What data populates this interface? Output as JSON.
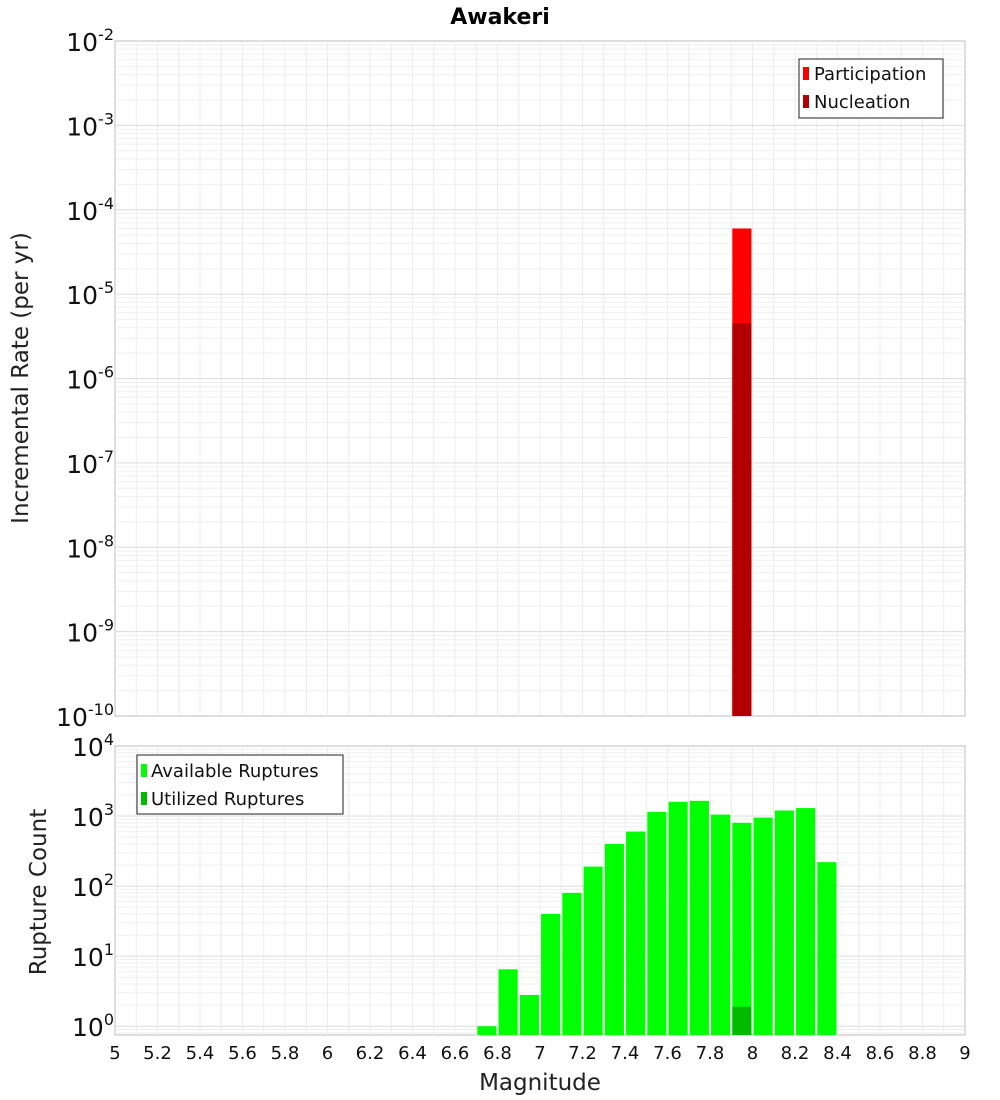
{
  "chart_data": [
    {
      "type": "bar",
      "title": "Awakeri",
      "xlabel": "Magnitude",
      "ylabel": "Incremental Rate (per yr)",
      "xlim": [
        5,
        9
      ],
      "ylim": [
        1e-10,
        0.01
      ],
      "yscale": "log",
      "grid": true,
      "legend_position": "top-right",
      "y_ticks": [
        {
          "base": "10",
          "exp": "-10"
        },
        {
          "base": "10",
          "exp": "-9"
        },
        {
          "base": "10",
          "exp": "-8"
        },
        {
          "base": "10",
          "exp": "-7"
        },
        {
          "base": "10",
          "exp": "-6"
        },
        {
          "base": "10",
          "exp": "-5"
        },
        {
          "base": "10",
          "exp": "-4"
        },
        {
          "base": "10",
          "exp": "-3"
        },
        {
          "base": "10",
          "exp": "-2"
        }
      ],
      "bar_width": 0.09,
      "series": [
        {
          "name": "Participation",
          "color": "#ff0000",
          "x": [
            7.95
          ],
          "values": [
            6e-05
          ]
        },
        {
          "name": "Nucleation",
          "color": "#b20000",
          "x": [
            7.95
          ],
          "values": [
            4.5e-06
          ]
        }
      ]
    },
    {
      "type": "bar",
      "title": "",
      "xlabel": "Magnitude",
      "ylabel": "Rupture Count",
      "xlim": [
        5,
        9
      ],
      "ylim": [
        0.75,
        10000
      ],
      "yscale": "log",
      "grid": true,
      "legend_position": "top-left",
      "y_ticks": [
        {
          "base": "10",
          "exp": "0"
        },
        {
          "base": "10",
          "exp": "1"
        },
        {
          "base": "10",
          "exp": "2"
        },
        {
          "base": "10",
          "exp": "3"
        },
        {
          "base": "10",
          "exp": "4"
        }
      ],
      "x_ticks": [
        "5",
        "5.2",
        "5.4",
        "5.6",
        "5.8",
        "6",
        "6.2",
        "6.4",
        "6.6",
        "6.8",
        "7",
        "7.2",
        "7.4",
        "7.6",
        "7.8",
        "8",
        "8.2",
        "8.4",
        "8.6",
        "8.8",
        "9"
      ],
      "bar_width": 0.09,
      "series": [
        {
          "name": "Available Ruptures",
          "color": "#00ff00",
          "x": [
            6.75,
            6.85,
            6.95,
            7.05,
            7.15,
            7.25,
            7.35,
            7.45,
            7.55,
            7.65,
            7.75,
            7.85,
            7.95,
            8.05,
            8.15,
            8.25,
            8.35
          ],
          "values": [
            1,
            6.5,
            2.8,
            40,
            80,
            190,
            400,
            600,
            1150,
            1600,
            1650,
            1050,
            800,
            950,
            1200,
            1300,
            220
          ]
        },
        {
          "name": "Utilized Ruptures",
          "color": "#00bb00",
          "x": [
            7.95
          ],
          "values": [
            1.9
          ]
        }
      ]
    }
  ]
}
